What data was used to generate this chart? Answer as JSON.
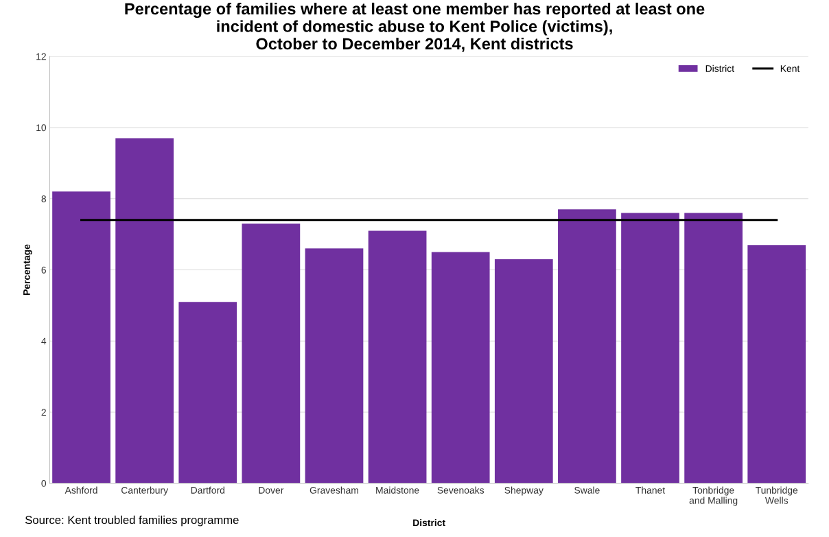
{
  "chart_data": {
    "type": "bar",
    "title": "Percentage of families where at least one member has reported at least one\nincident of domestic abuse to Kent Police (victims),\nOctober to December 2014, Kent districts",
    "xlabel": "District",
    "ylabel": "Percentage",
    "categories": [
      "Ashford",
      "Canterbury",
      "Dartford",
      "Dover",
      "Gravesham",
      "Maidstone",
      "Sevenoaks",
      "Shepway",
      "Swale",
      "Thanet",
      "Tonbridge\nand Malling",
      "Tunbridge\nWells"
    ],
    "series": [
      {
        "name": "District",
        "color": "#7030a0",
        "values": [
          8.2,
          9.7,
          5.1,
          7.3,
          6.6,
          7.1,
          6.5,
          6.3,
          7.7,
          7.6,
          7.6,
          6.7
        ]
      },
      {
        "name": "Kent",
        "type": "line",
        "color": "#000000",
        "values": [
          7.4,
          7.4,
          7.4,
          7.4,
          7.4,
          7.4,
          7.4,
          7.4,
          7.4,
          7.4,
          7.4,
          7.4
        ]
      }
    ],
    "ylim": [
      0,
      12
    ],
    "yticks": [
      0,
      2,
      4,
      6,
      8,
      10,
      12
    ],
    "grid": "y",
    "legend": "top right",
    "annotations": [
      "Source: Kent troubled families programme"
    ]
  }
}
